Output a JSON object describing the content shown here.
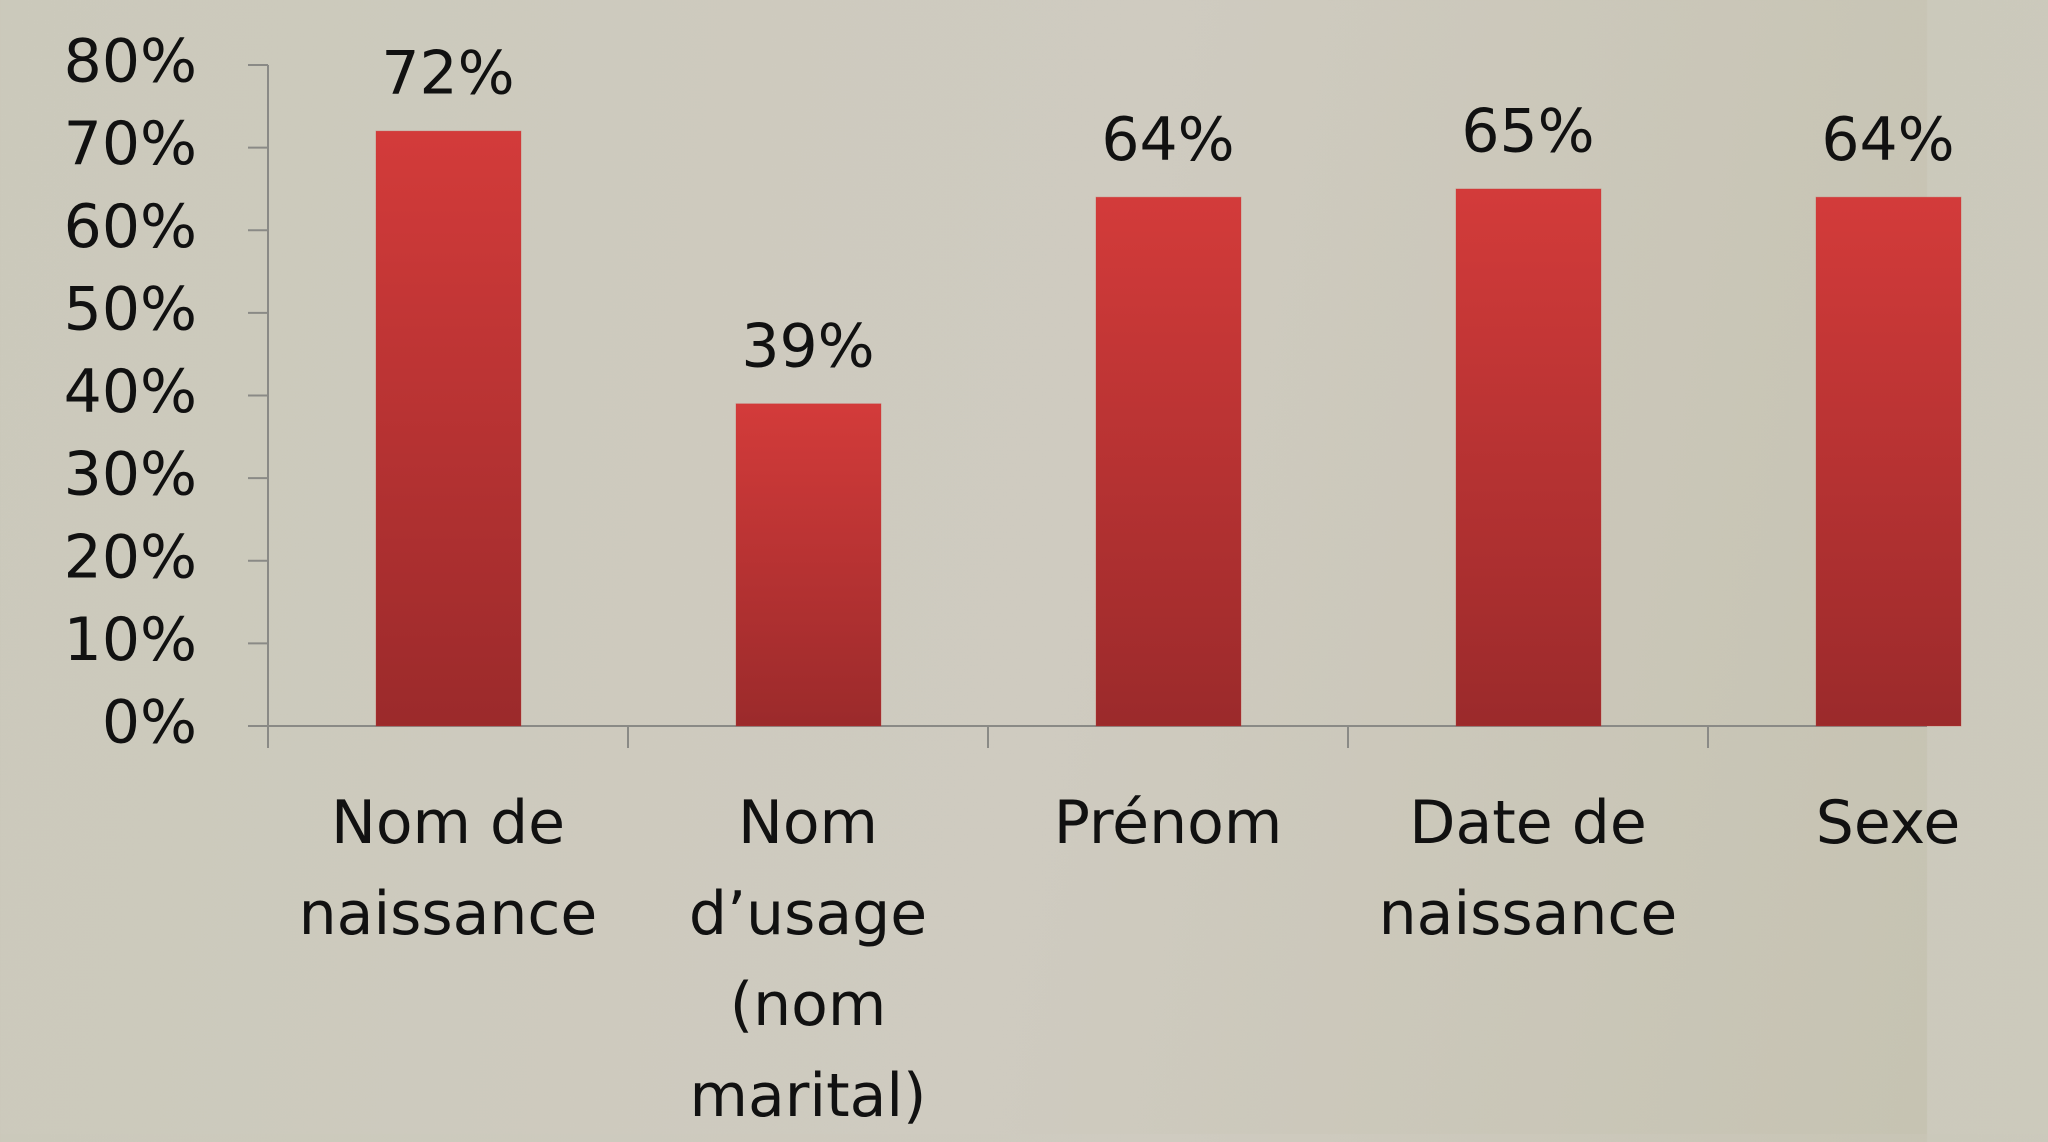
{
  "chart_data": {
    "type": "bar",
    "categories": [
      "Nom de naissance",
      "Nom d’usage (nom marital)",
      "Prénom",
      "Date de naissance",
      "Sexe"
    ],
    "values": [
      72,
      39,
      64,
      65,
      64
    ],
    "value_labels": [
      "72%",
      "39%",
      "64%",
      "65%",
      "64%"
    ],
    "color": "#c63636",
    "ylim": [
      0,
      80
    ],
    "yticks": [
      {
        "value": 0,
        "label": "0%"
      },
      {
        "value": 10,
        "label": "10%"
      },
      {
        "value": 20,
        "label": "20%"
      },
      {
        "value": 30,
        "label": "30%"
      },
      {
        "value": 40,
        "label": "40%"
      },
      {
        "value": 50,
        "label": "50%"
      },
      {
        "value": 60,
        "label": "60%"
      },
      {
        "value": 70,
        "label": "70%"
      },
      {
        "value": 80,
        "label": "80%"
      }
    ],
    "grid": false
  }
}
